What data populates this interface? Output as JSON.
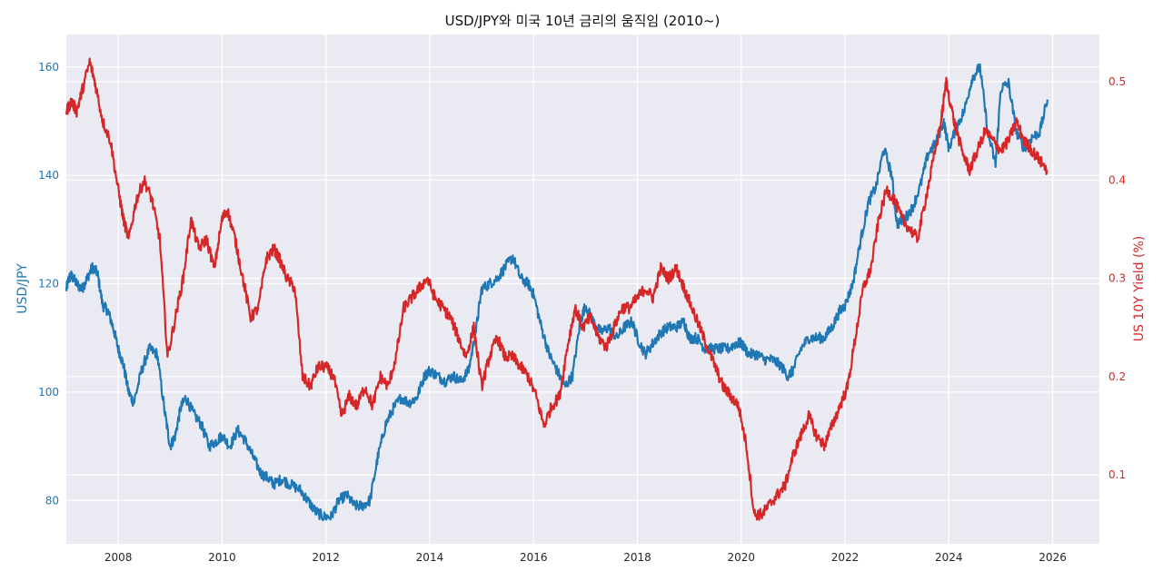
{
  "chart_data": {
    "type": "line",
    "title": "USD/JPY와 미국 10년 금리의 움직임 (2010~)",
    "xlabel": "",
    "ylabel": "USD/JPY",
    "y2label": "US 10Y Yield (%)",
    "xlim": [
      2007.0,
      2026.9
    ],
    "ylim": [
      72,
      166
    ],
    "y2lim": [
      0.03,
      0.548
    ],
    "x_ticks": [
      "2008",
      "2010",
      "2012",
      "2014",
      "2016",
      "2018",
      "2020",
      "2022",
      "2024",
      "2026"
    ],
    "y_ticks": [
      "80",
      "100",
      "120",
      "140",
      "160"
    ],
    "y2_ticks": [
      "0.1",
      "0.2",
      "0.3",
      "0.4",
      "0.5"
    ],
    "grid": true,
    "colors": {
      "usdjpy": "#1f77b4",
      "yield": "#d62728",
      "background": "#eaeaf2",
      "grid": "#ffffff"
    },
    "series": [
      {
        "key": "usdjpy",
        "axis": "left",
        "x": [
          2007.0,
          2007.05,
          2007.1,
          2007.2,
          2007.3,
          2007.4,
          2007.5,
          2007.6,
          2007.7,
          2007.8,
          2007.9,
          2008.0,
          2008.1,
          2008.2,
          2008.3,
          2008.45,
          2008.6,
          2008.75,
          2008.9,
          2009.0,
          2009.1,
          2009.2,
          2009.3,
          2009.45,
          2009.6,
          2009.75,
          2009.9,
          2010.0,
          2010.15,
          2010.3,
          2010.45,
          2010.6,
          2010.75,
          2010.9,
          2011.0,
          2011.15,
          2011.3,
          2011.5,
          2011.65,
          2011.8,
          2011.95,
          2012.1,
          2012.25,
          2012.4,
          2012.55,
          2012.7,
          2012.85,
          2013.0,
          2013.15,
          2013.3,
          2013.45,
          2013.6,
          2013.75,
          2013.9,
          2014.0,
          2014.15,
          2014.3,
          2014.45,
          2014.6,
          2014.75,
          2014.9,
          2015.0,
          2015.15,
          2015.3,
          2015.45,
          2015.6,
          2015.75,
          2015.9,
          2016.0,
          2016.15,
          2016.3,
          2016.45,
          2016.6,
          2016.75,
          2016.9,
          2017.0,
          2017.15,
          2017.3,
          2017.45,
          2017.6,
          2017.75,
          2017.9,
          2018.0,
          2018.15,
          2018.3,
          2018.45,
          2018.6,
          2018.75,
          2018.9,
          2019.0,
          2019.15,
          2019.3,
          2019.45,
          2019.6,
          2019.75,
          2019.9,
          2020.0,
          2020.15,
          2020.3,
          2020.45,
          2020.6,
          2020.75,
          2020.9,
          2021.0,
          2021.15,
          2021.3,
          2021.45,
          2021.6,
          2021.75,
          2021.9,
          2022.0,
          2022.15,
          2022.3,
          2022.45,
          2022.6,
          2022.75,
          2022.9,
          2023.0,
          2023.15,
          2023.3,
          2023.45,
          2023.6,
          2023.75,
          2023.9,
          2024.0,
          2024.15,
          2024.3,
          2024.45,
          2024.6,
          2024.75,
          2024.9,
          2025.0,
          2025.15,
          2025.3,
          2025.45,
          2025.6,
          2025.75,
          2025.9
        ],
        "values": [
          119,
          121,
          121.5,
          120,
          119,
          121,
          123,
          122,
          116,
          115,
          112,
          108,
          105,
          100,
          98,
          104,
          108,
          107,
          96,
          90,
          92,
          97,
          99,
          96,
          94,
          90,
          91,
          92,
          90,
          93,
          91,
          88,
          85,
          84,
          83,
          84,
          83,
          82,
          80,
          78,
          77,
          77,
          80,
          81,
          79,
          79,
          80,
          88,
          94,
          97,
          99,
          98,
          99,
          103,
          104,
          103,
          102,
          103,
          102,
          104,
          112,
          119,
          120,
          121,
          123,
          125,
          121,
          120,
          118,
          112,
          107,
          104,
          101,
          103,
          113,
          116,
          113,
          111,
          112,
          110,
          112,
          113,
          110,
          107,
          109,
          111,
          112,
          112,
          113,
          110,
          110,
          108,
          108,
          108,
          108,
          109,
          109,
          107,
          107,
          106,
          106,
          105,
          103,
          104,
          108,
          110,
          110,
          110,
          112,
          115,
          116,
          120,
          128,
          135,
          138,
          145,
          140,
          131,
          132,
          134,
          138,
          144,
          146,
          150,
          145,
          149,
          152,
          158,
          160,
          148,
          142,
          156,
          157,
          148,
          145,
          147,
          148,
          154
        ],
        "noise": 1.0
      },
      {
        "key": "yield",
        "axis": "right",
        "x": [
          2007.0,
          2007.1,
          2007.2,
          2007.3,
          2007.45,
          2007.55,
          2007.7,
          2007.85,
          2008.0,
          2008.1,
          2008.2,
          2008.35,
          2008.5,
          2008.65,
          2008.8,
          2008.95,
          2009.1,
          2009.25,
          2009.4,
          2009.55,
          2009.7,
          2009.85,
          2010.0,
          2010.1,
          2010.25,
          2010.4,
          2010.55,
          2010.7,
          2010.85,
          2011.0,
          2011.1,
          2011.25,
          2011.4,
          2011.55,
          2011.7,
          2011.85,
          2012.0,
          2012.15,
          2012.3,
          2012.45,
          2012.6,
          2012.75,
          2012.9,
          2013.05,
          2013.2,
          2013.35,
          2013.5,
          2013.65,
          2013.8,
          2013.95,
          2014.1,
          2014.25,
          2014.4,
          2014.55,
          2014.7,
          2014.85,
          2015.0,
          2015.15,
          2015.3,
          2015.45,
          2015.6,
          2015.75,
          2015.9,
          2016.05,
          2016.2,
          2016.35,
          2016.5,
          2016.65,
          2016.8,
          2016.95,
          2017.1,
          2017.25,
          2017.4,
          2017.55,
          2017.7,
          2017.85,
          2018.0,
          2018.15,
          2018.3,
          2018.45,
          2018.6,
          2018.75,
          2018.9,
          2019.05,
          2019.2,
          2019.35,
          2019.5,
          2019.65,
          2019.8,
          2019.95,
          2020.1,
          2020.25,
          2020.4,
          2020.55,
          2020.7,
          2020.85,
          2021.0,
          2021.15,
          2021.3,
          2021.45,
          2021.6,
          2021.75,
          2021.9,
          2022.05,
          2022.2,
          2022.35,
          2022.5,
          2022.65,
          2022.8,
          2022.95,
          2023.1,
          2023.25,
          2023.4,
          2023.55,
          2023.7,
          2023.85,
          2023.95,
          2024.1,
          2024.25,
          2024.4,
          2024.55,
          2024.7,
          2024.85,
          2025.0,
          2025.15,
          2025.3,
          2025.45,
          2025.6,
          2025.75,
          2025.9
        ],
        "values": [
          0.47,
          0.48,
          0.47,
          0.49,
          0.52,
          0.5,
          0.46,
          0.44,
          0.39,
          0.36,
          0.34,
          0.38,
          0.4,
          0.38,
          0.34,
          0.22,
          0.26,
          0.3,
          0.36,
          0.33,
          0.34,
          0.31,
          0.36,
          0.37,
          0.34,
          0.3,
          0.26,
          0.27,
          0.32,
          0.33,
          0.32,
          0.3,
          0.29,
          0.2,
          0.19,
          0.21,
          0.21,
          0.2,
          0.16,
          0.18,
          0.17,
          0.19,
          0.17,
          0.2,
          0.19,
          0.22,
          0.27,
          0.28,
          0.29,
          0.3,
          0.28,
          0.27,
          0.26,
          0.24,
          0.22,
          0.25,
          0.19,
          0.22,
          0.24,
          0.22,
          0.22,
          0.21,
          0.2,
          0.18,
          0.15,
          0.17,
          0.18,
          0.23,
          0.27,
          0.25,
          0.26,
          0.24,
          0.23,
          0.25,
          0.27,
          0.27,
          0.28,
          0.29,
          0.28,
          0.31,
          0.3,
          0.31,
          0.29,
          0.27,
          0.25,
          0.23,
          0.21,
          0.19,
          0.18,
          0.17,
          0.13,
          0.06,
          0.06,
          0.07,
          0.08,
          0.09,
          0.12,
          0.14,
          0.16,
          0.14,
          0.13,
          0.15,
          0.17,
          0.19,
          0.24,
          0.29,
          0.31,
          0.36,
          0.39,
          0.38,
          0.36,
          0.35,
          0.34,
          0.38,
          0.42,
          0.46,
          0.5,
          0.46,
          0.43,
          0.41,
          0.43,
          0.45,
          0.44,
          0.43,
          0.44,
          0.46,
          0.44,
          0.43,
          0.42,
          0.41
        ],
        "noise": 0.006
      }
    ]
  }
}
